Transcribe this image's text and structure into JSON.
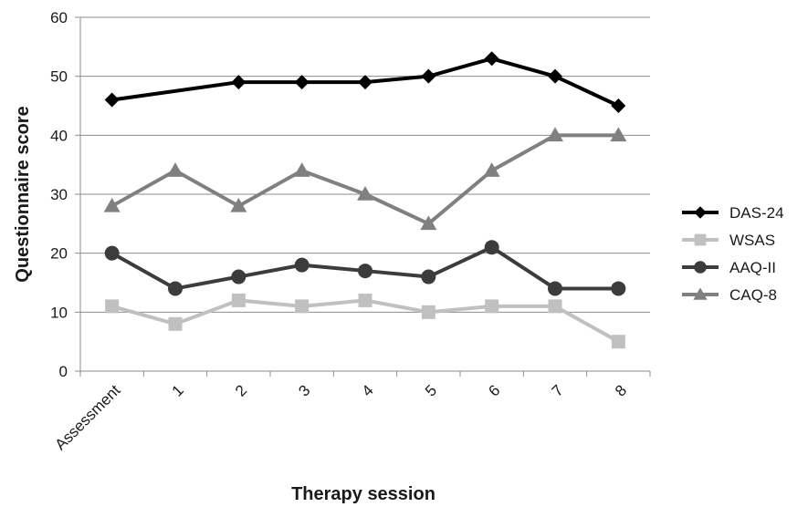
{
  "chart_data": {
    "type": "line",
    "title": "",
    "xlabel": "Therapy session",
    "ylabel": "Questionnaire score",
    "ylim": [
      0,
      60
    ],
    "yticks": [
      0,
      10,
      20,
      30,
      40,
      50,
      60
    ],
    "grid": "horizontal",
    "legend": "right",
    "categories": [
      "Assessment",
      "1",
      "2",
      "3",
      "4",
      "5",
      "6",
      "7",
      "8"
    ],
    "series": [
      {
        "name": "DAS-24",
        "marker": "diamond",
        "color": "#000000",
        "values": [
          46,
          null,
          49,
          49,
          49,
          50,
          53,
          50,
          45
        ]
      },
      {
        "name": "WSAS",
        "marker": "square",
        "color": "#c0c0c0",
        "values": [
          11,
          8,
          12,
          11,
          12,
          10,
          11,
          11,
          5
        ]
      },
      {
        "name": "AAQ-II",
        "marker": "circle",
        "color": "#3c3c3c",
        "values": [
          20,
          14,
          16,
          18,
          17,
          16,
          21,
          14,
          14
        ]
      },
      {
        "name": "CAQ-8",
        "marker": "triangle",
        "color": "#808080",
        "values": [
          28,
          34,
          28,
          34,
          30,
          25,
          34,
          40,
          40
        ]
      }
    ]
  }
}
